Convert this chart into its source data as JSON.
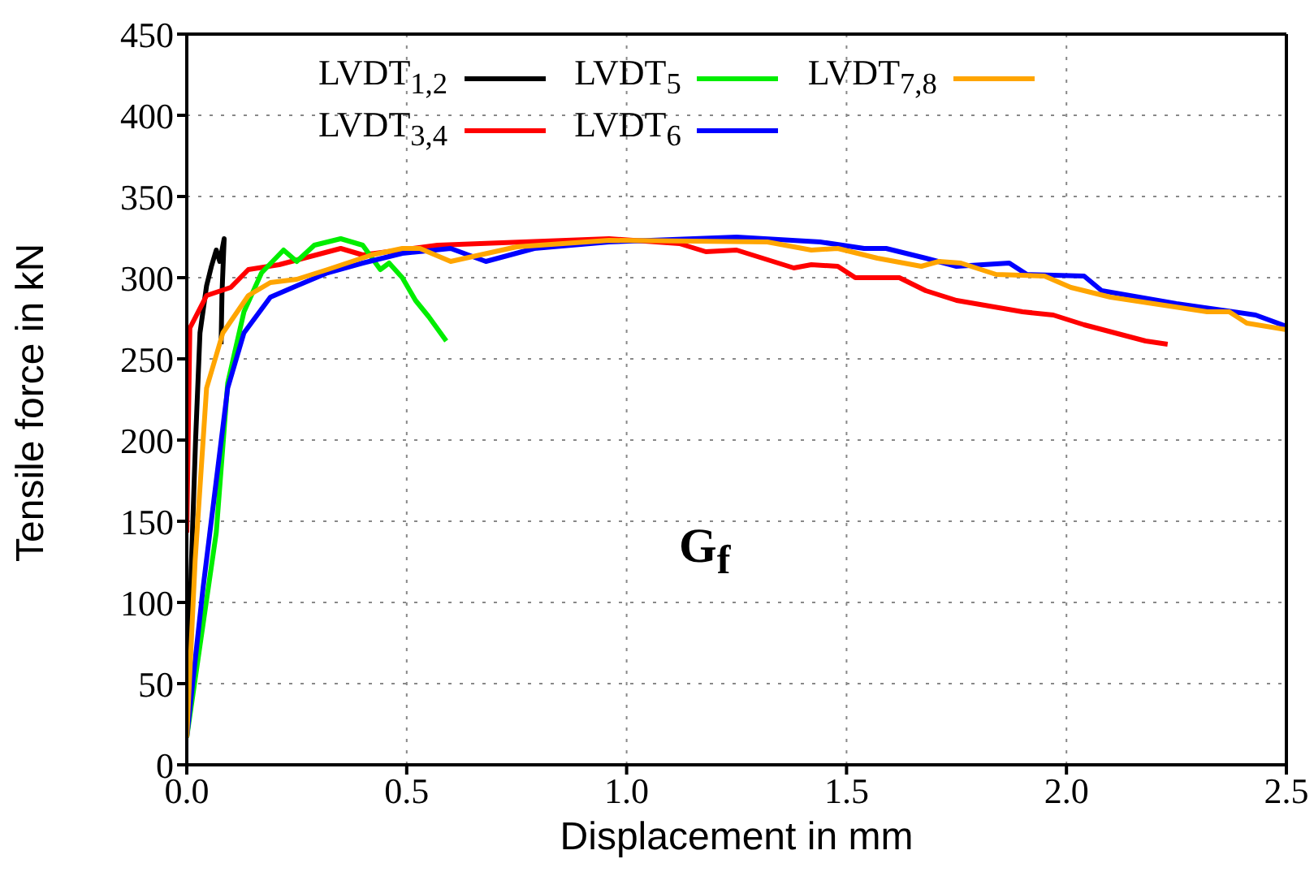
{
  "chart_data": {
    "type": "line",
    "xlabel": "Displacement in mm",
    "ylabel": "Tensile force in kN",
    "xlim": [
      0,
      2.5
    ],
    "xticks": [
      {
        "value": 0,
        "label": "0.0"
      },
      0.5,
      {
        "value": 1,
        "label": "1.0"
      },
      1.5,
      {
        "value": 2,
        "label": "2.0"
      },
      2.5
    ],
    "ylim": [
      0,
      450
    ],
    "yticks": [
      0,
      50,
      100,
      150,
      200,
      250,
      300,
      350,
      400,
      450
    ],
    "grid": true,
    "legend": "top left",
    "line_style": "solid",
    "marker": "none",
    "annotations": [
      "G$_{f}$"
    ],
    "series": [
      {
        "name": "LVDT$_{1,2}$",
        "color": "#000000",
        "x": [
          0,
          0.01,
          0.02,
          0.03,
          0.045,
          0.056,
          0.067,
          0.075,
          0.085,
          0.08,
          0.078
        ],
        "values": [
          17,
          120,
          200,
          266,
          295,
          307,
          317,
          310,
          324,
          290,
          259
        ]
      },
      {
        "name": "LVDT$_{3,4}$",
        "color": "#ff0000",
        "x": [
          0,
          0.007,
          0.045,
          0.1,
          0.14,
          0.21,
          0.35,
          0.4,
          0.57,
          0.96,
          1.12,
          1.18,
          1.25,
          1.38,
          1.42,
          1.48,
          1.52,
          1.62,
          1.68,
          1.75,
          1.9,
          1.97,
          2.04,
          2.18,
          2.23
        ],
        "values": [
          143,
          269,
          289,
          294,
          305,
          308,
          318,
          314,
          320,
          324,
          321,
          316,
          317,
          306,
          308,
          307,
          300,
          300,
          292,
          286,
          279,
          277,
          271,
          261,
          259
        ]
      },
      {
        "name": "LVDT$_{5}$",
        "color": "#00ee00",
        "x": [
          0,
          0.067,
          0.093,
          0.13,
          0.17,
          0.22,
          0.25,
          0.29,
          0.35,
          0.4,
          0.44,
          0.46,
          0.49,
          0.52,
          0.55,
          0.59
        ],
        "values": [
          17,
          143,
          235,
          279,
          303,
          317,
          310,
          320,
          324,
          320,
          305,
          309,
          300,
          286,
          276,
          261
        ]
      },
      {
        "name": "LVDT$_{6}$",
        "color": "#0000ff",
        "x": [
          0,
          0.037,
          0.093,
          0.13,
          0.19,
          0.25,
          0.32,
          0.4,
          0.49,
          0.6,
          0.68,
          0.79,
          0.96,
          1.25,
          1.44,
          1.54,
          1.59,
          1.68,
          1.75,
          1.87,
          1.91,
          2.04,
          2.08,
          2.25,
          2.43,
          2.5
        ],
        "values": [
          17,
          109,
          232,
          266,
          288,
          295,
          303,
          309,
          315,
          318,
          310,
          318,
          322,
          325,
          322,
          318,
          318,
          312,
          307,
          309,
          302,
          301,
          292,
          284,
          277,
          270
        ]
      },
      {
        "name": "LVDT$_{7,8}$",
        "color": "#ffa500",
        "x": [
          0,
          0.019,
          0.045,
          0.082,
          0.14,
          0.19,
          0.25,
          0.32,
          0.42,
          0.49,
          0.53,
          0.6,
          0.75,
          0.96,
          1.32,
          1.42,
          1.48,
          1.57,
          1.67,
          1.71,
          1.76,
          1.84,
          1.95,
          2.01,
          2.1,
          2.32,
          2.37,
          2.41,
          2.5
        ],
        "values": [
          17,
          126,
          232,
          266,
          289,
          297,
          299,
          305,
          314,
          318,
          318,
          310,
          319,
          323,
          322,
          317,
          318,
          312,
          307,
          310,
          309,
          302,
          301,
          294,
          288,
          279,
          279,
          272,
          268
        ]
      }
    ]
  }
}
